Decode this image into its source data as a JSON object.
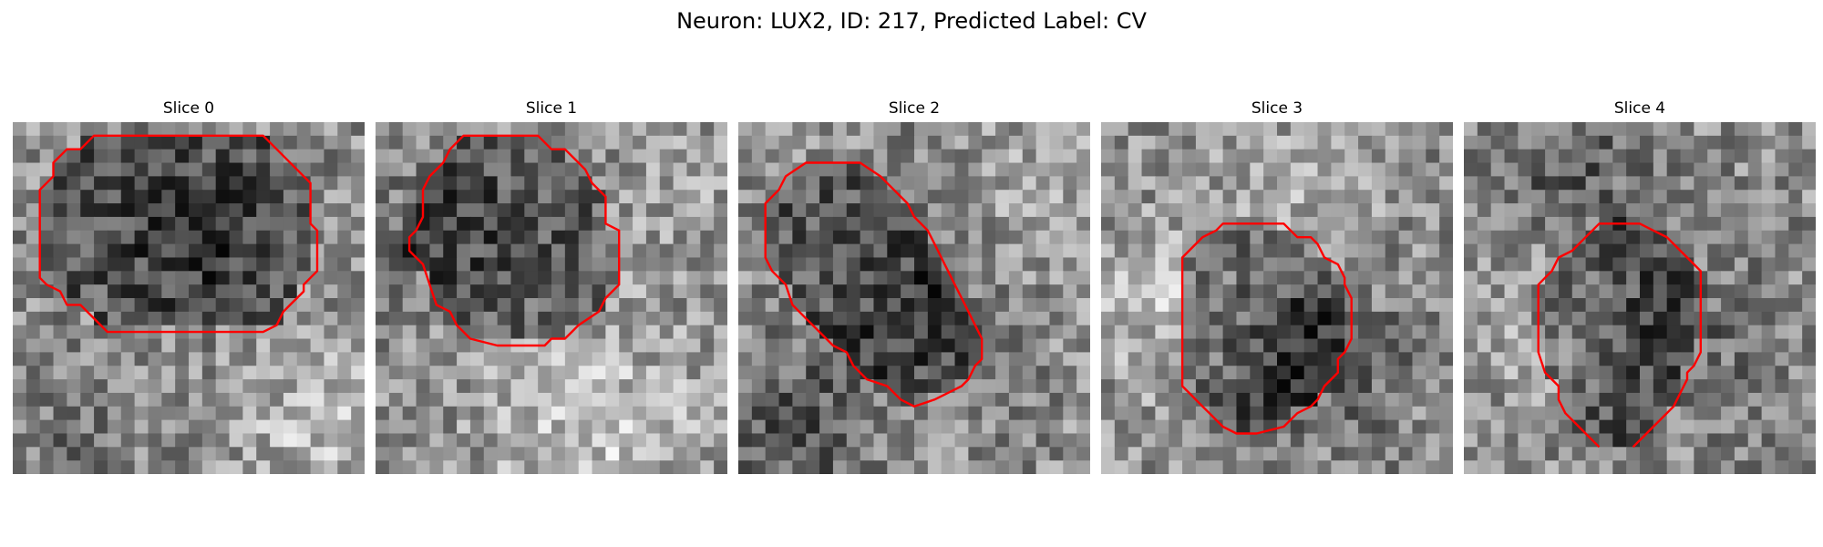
{
  "figure": {
    "title": "Neuron: LUX2, ID: 217, Predicted Label: CV"
  },
  "panels": [
    {
      "title": "Slice 0",
      "contour_color": "#ff0000",
      "contour": [
        [
          15,
          1
        ],
        [
          18.5,
          1
        ],
        [
          22,
          4.5
        ],
        [
          22,
          7.5
        ],
        [
          22.5,
          8
        ],
        [
          22.5,
          11
        ],
        [
          22,
          11.5
        ],
        [
          21.5,
          12
        ],
        [
          21.5,
          12.5
        ],
        [
          20.5,
          13.5
        ],
        [
          20,
          14
        ],
        [
          19.5,
          15
        ],
        [
          18.5,
          15.5
        ],
        [
          15,
          15.5
        ],
        [
          7,
          15.5
        ],
        [
          5,
          13.5
        ],
        [
          4,
          13.5
        ],
        [
          3.5,
          12.5
        ],
        [
          2.5,
          12
        ],
        [
          2,
          11.5
        ],
        [
          2,
          9.5
        ],
        [
          2,
          7
        ],
        [
          2,
          5
        ],
        [
          2.5,
          4.5
        ],
        [
          3,
          4
        ],
        [
          3,
          3
        ],
        [
          4,
          2
        ],
        [
          5,
          2
        ],
        [
          6,
          1
        ],
        [
          7,
          1
        ],
        [
          15,
          1
        ]
      ],
      "intensity_bias": [
        [
          0.5,
          0.3,
          2.5,
          -0.18
        ],
        [
          0.85,
          0.85,
          3,
          0.18
        ],
        [
          0.15,
          0.9,
          2.5,
          -0.1
        ]
      ]
    },
    {
      "title": "Slice 1",
      "contour_color": "#ff0000",
      "contour": [
        [
          10,
          1
        ],
        [
          12,
          1
        ],
        [
          13,
          2
        ],
        [
          14,
          2
        ],
        [
          15,
          3
        ],
        [
          15.5,
          3.5
        ],
        [
          16,
          4.5
        ],
        [
          17,
          5.5
        ],
        [
          17,
          7.5
        ],
        [
          18,
          8
        ],
        [
          18,
          10
        ],
        [
          18,
          12
        ],
        [
          17.5,
          12.5
        ],
        [
          17,
          13
        ],
        [
          16.5,
          14
        ],
        [
          15,
          15
        ],
        [
          14.5,
          15.5
        ],
        [
          14,
          16
        ],
        [
          13,
          16
        ],
        [
          12.5,
          16.5
        ],
        [
          9,
          16.5
        ],
        [
          7,
          16
        ],
        [
          6,
          15
        ],
        [
          5.5,
          14
        ],
        [
          4.5,
          13.5
        ],
        [
          4,
          12
        ],
        [
          3.5,
          10.5
        ],
        [
          3,
          10
        ],
        [
          2.5,
          9.5
        ],
        [
          2.5,
          8.5
        ],
        [
          3,
          8
        ],
        [
          3.5,
          7
        ],
        [
          3.5,
          5
        ],
        [
          4,
          4
        ],
        [
          5,
          3
        ],
        [
          5.5,
          2
        ],
        [
          6.5,
          1
        ],
        [
          10,
          1
        ]
      ],
      "intensity_bias": [
        [
          0.6,
          0.85,
          4,
          0.22
        ],
        [
          0.15,
          0.3,
          3,
          -0.1
        ],
        [
          0.8,
          0.2,
          3,
          0.08
        ]
      ]
    },
    {
      "title": "Slice 2",
      "contour_color": "#ff0000",
      "contour": [
        [
          7,
          3
        ],
        [
          9,
          3
        ],
        [
          10.5,
          4
        ],
        [
          11,
          4.5
        ],
        [
          11.5,
          5
        ],
        [
          12.5,
          6
        ],
        [
          13,
          7
        ],
        [
          14,
          8
        ],
        [
          14.5,
          9
        ],
        [
          15,
          10
        ],
        [
          15.5,
          11
        ],
        [
          16,
          12
        ],
        [
          16.5,
          13
        ],
        [
          17,
          14
        ],
        [
          17.5,
          15
        ],
        [
          18,
          16
        ],
        [
          18,
          17.5
        ],
        [
          17.5,
          18
        ],
        [
          17,
          19
        ],
        [
          16.5,
          19.5
        ],
        [
          15.5,
          20
        ],
        [
          14.5,
          20.5
        ],
        [
          13,
          21
        ],
        [
          12,
          20.5
        ],
        [
          11,
          19.5
        ],
        [
          9.5,
          19
        ],
        [
          8.5,
          18
        ],
        [
          8,
          17
        ],
        [
          7,
          16.5
        ],
        [
          6,
          15.5
        ],
        [
          5,
          14.5
        ],
        [
          4,
          13.5
        ],
        [
          3.5,
          12
        ],
        [
          2.5,
          11
        ],
        [
          2,
          10
        ],
        [
          2,
          8
        ],
        [
          2,
          6
        ],
        [
          3,
          5
        ],
        [
          3.5,
          4
        ],
        [
          5,
          3
        ],
        [
          7,
          3
        ]
      ],
      "intensity_bias": [
        [
          0.5,
          0.5,
          3,
          -0.12
        ],
        [
          0.15,
          0.85,
          2.5,
          -0.25
        ],
        [
          0.85,
          0.15,
          3,
          0.12
        ]
      ]
    },
    {
      "title": "Slice 3",
      "contour_color": "#ff0000",
      "contour": [
        [
          11,
          7.5
        ],
        [
          13.5,
          7.5
        ],
        [
          14.5,
          8.5
        ],
        [
          15.5,
          8.5
        ],
        [
          16,
          9
        ],
        [
          16.5,
          10
        ],
        [
          17.5,
          10.5
        ],
        [
          18,
          11.5
        ],
        [
          18,
          12
        ],
        [
          18.5,
          13
        ],
        [
          18.5,
          14.5
        ],
        [
          18.5,
          16
        ],
        [
          18,
          17
        ],
        [
          17.5,
          17.5
        ],
        [
          17.5,
          18.5
        ],
        [
          17,
          19
        ],
        [
          16.5,
          19.5
        ],
        [
          16,
          20.5
        ],
        [
          15.5,
          21
        ],
        [
          14.5,
          21.5
        ],
        [
          13.5,
          22.5
        ],
        [
          11.5,
          23
        ],
        [
          10,
          23
        ],
        [
          9,
          22.5
        ],
        [
          8,
          21.5
        ],
        [
          7.5,
          21
        ],
        [
          6.5,
          20
        ],
        [
          6,
          19.5
        ],
        [
          6,
          18
        ],
        [
          6,
          16
        ],
        [
          6,
          12
        ],
        [
          6,
          10
        ],
        [
          7,
          9
        ],
        [
          7.5,
          8.5
        ],
        [
          8.5,
          8
        ],
        [
          9,
          7.5
        ],
        [
          11,
          7.5
        ]
      ],
      "intensity_bias": [
        [
          0.2,
          0.5,
          3.5,
          0.18
        ],
        [
          0.6,
          0.15,
          3,
          0.15
        ],
        [
          0.6,
          0.65,
          3,
          -0.2
        ]
      ]
    },
    {
      "title": "Slice 4",
      "contour_color": "#ff0000",
      "contour": [
        [
          10.5,
          7.5
        ],
        [
          13,
          7.5
        ],
        [
          14,
          8
        ],
        [
          15,
          8.5
        ],
        [
          16,
          9.5
        ],
        [
          17,
          10.5
        ],
        [
          17.5,
          11
        ],
        [
          17.5,
          13
        ],
        [
          17.5,
          16
        ],
        [
          17.5,
          17
        ],
        [
          17,
          18
        ],
        [
          16.5,
          18.5
        ],
        [
          16.5,
          19
        ],
        [
          16,
          20
        ],
        [
          15.5,
          21
        ],
        [
          14.5,
          22
        ],
        [
          14,
          22.5
        ],
        [
          13.5,
          23
        ],
        [
          13,
          23.5
        ],
        [
          12.5,
          24
        ]
      ],
      "contour2": [
        [
          10,
          24
        ],
        [
          9,
          23
        ],
        [
          8,
          22
        ],
        [
          7.5,
          21.5
        ],
        [
          7,
          20.5
        ],
        [
          7,
          19.5
        ],
        [
          6.5,
          19
        ],
        [
          6,
          18.5
        ],
        [
          5.5,
          17
        ],
        [
          5.5,
          15
        ],
        [
          5.5,
          12
        ],
        [
          6,
          11.5
        ],
        [
          6.5,
          11
        ],
        [
          7,
          10
        ],
        [
          8,
          9.5
        ],
        [
          9,
          8.5
        ],
        [
          10,
          7.5
        ],
        [
          10.5,
          7.5
        ]
      ],
      "intensity_bias": [
        [
          0.3,
          0.15,
          3,
          -0.18
        ],
        [
          0.25,
          0.55,
          3,
          0.16
        ],
        [
          0.6,
          0.6,
          3,
          -0.15
        ]
      ]
    }
  ]
}
